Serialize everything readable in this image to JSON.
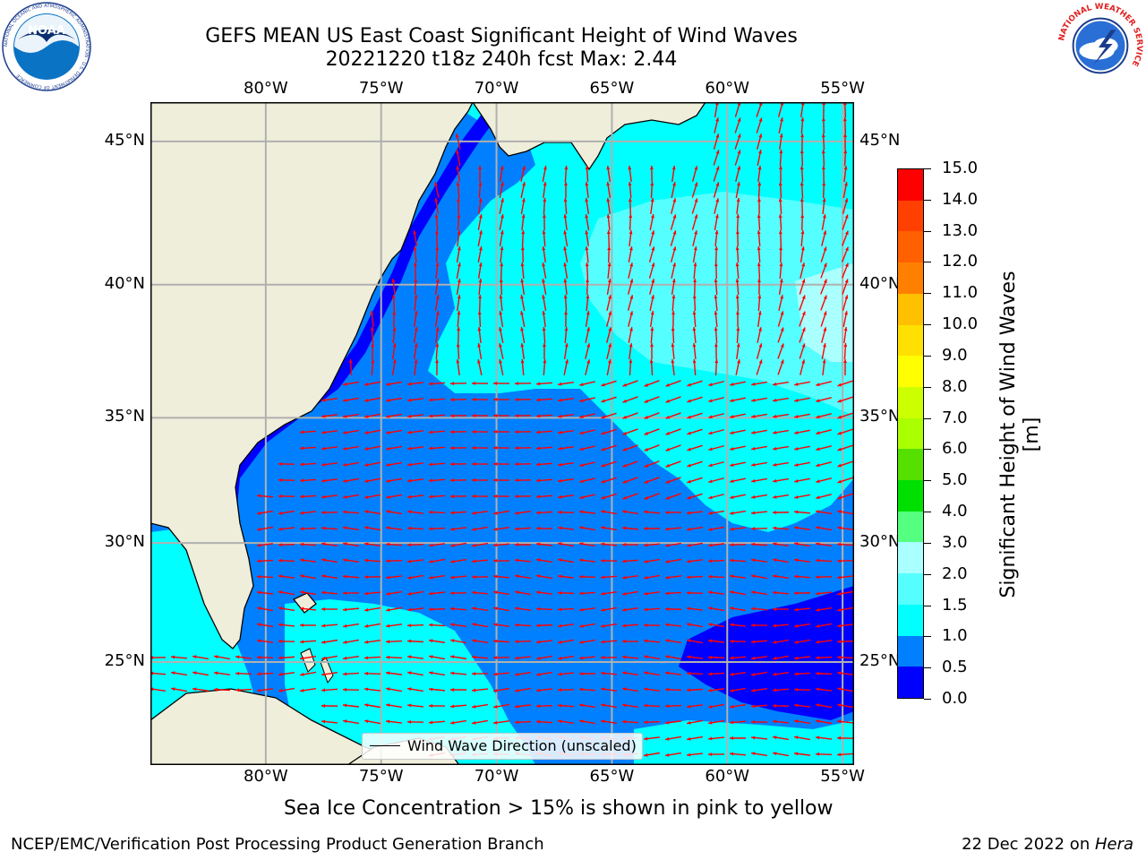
{
  "title": {
    "line1": "GEFS MEAN US East Coast Significant Height of Wind Waves",
    "line2": "20221220 t18z 240h fcst   Max: 2.44"
  },
  "map": {
    "lon_range": [
      -85,
      -54.5
    ],
    "lat_range": [
      20.5,
      46.3
    ],
    "lon_ticks": [
      {
        "value": -80,
        "label": "80°W"
      },
      {
        "value": -75,
        "label": "75°W"
      },
      {
        "value": -70,
        "label": "70°W"
      },
      {
        "value": -65,
        "label": "65°W"
      },
      {
        "value": -60,
        "label": "60°W"
      },
      {
        "value": -55,
        "label": "55°W"
      }
    ],
    "lat_ticks": [
      {
        "value": 45,
        "label": "45°N"
      },
      {
        "value": 40,
        "label": "40°N"
      },
      {
        "value": 35,
        "label": "35°N"
      },
      {
        "value": 30,
        "label": "30°N"
      },
      {
        "value": 25,
        "label": "25°N"
      }
    ],
    "grid": true,
    "arrow_color": "#ff0000",
    "land_color": "#efeedb"
  },
  "legend": {
    "label": "Wind Wave Direction (unscaled)",
    "placement": "lower-center"
  },
  "colorbar": {
    "title": "Significant Height of Wind Waves [m]",
    "labels": [
      "0.0",
      "0.5",
      "1.0",
      "1.5",
      "2.0",
      "3.0",
      "4.0",
      "5.0",
      "6.0",
      "7.0",
      "8.0",
      "9.0",
      "10.0",
      "11.0",
      "12.0",
      "13.0",
      "14.0",
      "15.0"
    ],
    "colors": [
      "#0000ff",
      "#0080ff",
      "#00ffff",
      "#55ffff",
      "#aaffff",
      "#55ff80",
      "#00e000",
      "#55e000",
      "#aaff00",
      "#ccff00",
      "#ffff00",
      "#ffe000",
      "#ffc000",
      "#ff8000",
      "#ff6000",
      "#ff4000",
      "#ff0000"
    ]
  },
  "footer": {
    "note": "Sea Ice Concentration > 15% is shown in pink to yellow",
    "credit": "NCEP/EMC/Verification Post Processing Product Generation Branch",
    "date": "22 Dec 2022 on ",
    "host": "Hera"
  },
  "logos": {
    "noaa": "NOAA",
    "noaa_ring": "NATIONAL OCEANIC AND ATMOSPHERIC ADMINISTRATION · U.S. DEPARTMENT OF COMMERCE",
    "nws_ring": "NATIONAL WEATHER SERVICE"
  }
}
